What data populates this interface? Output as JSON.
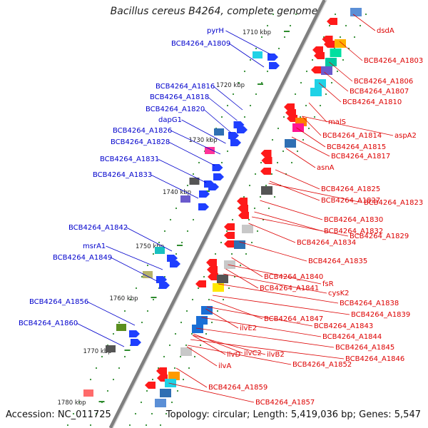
{
  "title": "Bacillus cereus B4264, complete genome",
  "footer": {
    "accession": "Accession: NC_011725",
    "topology": "Topology: circular; Length: 5,419,036 bp; Genes: 5,547"
  },
  "colors": {
    "forward_label": "#0000cc",
    "reverse_label": "#dd0000",
    "forward_gene": "#1f3fff",
    "reverse_gene": "#ff1a1a",
    "backbone": "#7f7f7f",
    "tick": "#2e8b2e"
  },
  "scale_ticks": [
    "1710 kbp",
    "1720 kbp",
    "1730 kbp",
    "1740 kbp",
    "1750 kbp",
    "1760 kbp",
    "1770 kbp",
    "1780 kbp"
  ],
  "forward_labels": [
    "pyrH",
    "BCB4264_A1809",
    "BCB4264_A1816",
    "BCB4264_A1818",
    "BCB4264_A1820",
    "dapG1",
    "BCB4264_A1826",
    "BCB4264_A1828",
    "BCB4264_A1831",
    "BCB4264_A1833",
    "BCB4264_A1842",
    "msrA1",
    "BCB4264_A1849",
    "BCB4264_A1856",
    "BCB4264_A1860"
  ],
  "reverse_labels": [
    "dsdA",
    "BCB4264_A1803",
    "BCB4264_A1806",
    "BCB4264_A1807",
    "BCB4264_A1810",
    "malS",
    "aspA2",
    "BCB4264_A1814",
    "BCB4264_A1815",
    "BCB4264_A1817",
    "asnA",
    "BCB4264_A1825",
    "BCB4264_A1827",
    "BCB4264_A1823",
    "BCB4264_A1830",
    "BCB4264_A1832",
    "BCB4264_A1829",
    "BCB4264_A1834",
    "BCB4264_A1835",
    "BCB4264_A1840",
    "fsR",
    "BCB4264_A1841",
    "cysK2",
    "BCB4264_A1838",
    "BCB4264_A1839",
    "BCB4264_A1847",
    "BCB4264_A1843",
    "ilvE2",
    "BCB4264_A1844",
    "BCB4264_A1845",
    "ilvD",
    "ilvC2",
    "ilvB2",
    "BCB4264_A1846",
    "ilvA",
    "BCB4264_A1852",
    "BCB4264_A1859",
    "BCB4264_A1857"
  ]
}
